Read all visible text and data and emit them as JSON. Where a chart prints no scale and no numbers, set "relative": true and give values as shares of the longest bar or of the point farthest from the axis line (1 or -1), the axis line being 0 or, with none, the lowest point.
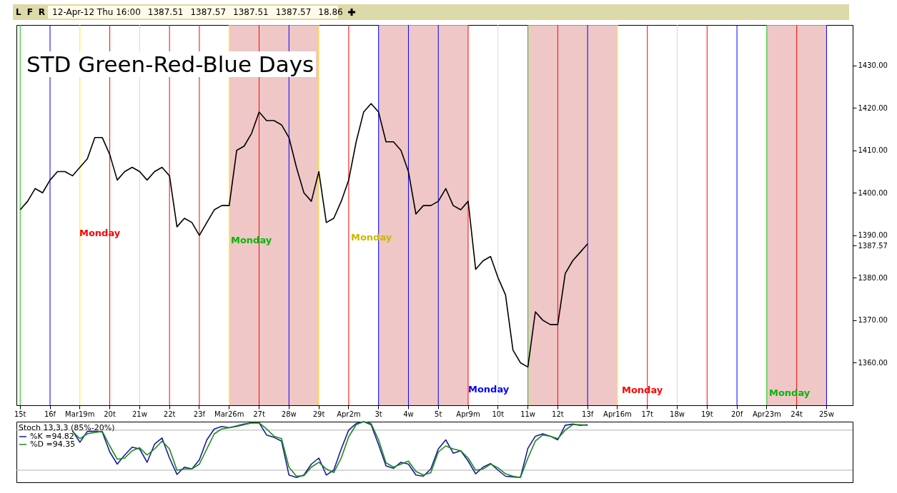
{
  "chart_data": [
    {
      "type": "line",
      "title": "STD Green-Red-Blue Days",
      "color": "#000000",
      "categories": [
        "15t",
        null,
        null,
        null,
        "16f",
        null,
        null,
        null,
        "Mar19m",
        null,
        null,
        null,
        "20t",
        null,
        null,
        null,
        "21w",
        null,
        null,
        null,
        "22t",
        null,
        null,
        null,
        "23f",
        null,
        null,
        null,
        "Mar26m",
        null,
        null,
        null,
        "27t",
        null,
        null,
        null,
        "28w",
        null,
        null,
        null,
        "29t",
        null,
        null,
        null,
        "Apr2m",
        null,
        null,
        null,
        "3t",
        null,
        null,
        null,
        "4w",
        null,
        null,
        null,
        "5t",
        null,
        null,
        null,
        "Apr9m",
        null,
        null,
        null,
        "10t",
        null,
        null,
        null,
        "11w",
        null,
        null,
        null,
        "12t",
        null,
        null,
        null,
        "13f",
        null,
        null,
        null,
        "Apr16m",
        null,
        null,
        null,
        "17t",
        null,
        null,
        null,
        "18w",
        null,
        null,
        null,
        "19t",
        null,
        null,
        null,
        "20f",
        null,
        null,
        null,
        "Apr23m",
        null,
        null,
        null,
        "24t",
        null,
        null,
        null,
        "25w",
        null,
        null,
        null
      ],
      "values": [
        1396,
        1398,
        1401,
        1400,
        1403,
        1405,
        1405,
        1404,
        1406,
        1408,
        1413,
        1413,
        1409,
        1403,
        1405,
        1406,
        1405,
        1403,
        1405,
        1406,
        1404,
        1392,
        1394,
        1393,
        1390,
        1393,
        1396,
        1397,
        1397,
        1410,
        1411,
        1414,
        1419,
        1417,
        1417,
        1416,
        1413,
        1406,
        1400,
        1398,
        1405,
        1393,
        1394,
        1398,
        1403,
        1412,
        1419,
        1421,
        1419,
        1412,
        1412,
        1410,
        1405,
        1395,
        1397,
        1397,
        1398,
        1401,
        1397,
        1396,
        1398,
        1382,
        1384,
        1385,
        1380,
        1376,
        1363,
        1360,
        1359,
        1372,
        1370,
        1369,
        1369,
        1381,
        1384,
        1386,
        1388,
        null,
        null,
        null,
        null,
        null,
        null,
        null,
        null,
        null,
        null,
        null,
        null,
        null,
        null,
        null,
        null,
        null,
        null,
        null,
        null,
        null,
        null,
        null,
        null,
        null,
        null,
        null,
        null,
        null,
        null,
        null,
        null,
        null,
        null,
        null
      ],
      "ylim": [
        1350,
        1439.5
      ],
      "yticks": [
        {
          "value": 1360,
          "label": "1360.00"
        },
        {
          "value": 1370,
          "label": "1370.00"
        },
        {
          "value": 1380,
          "label": "1380.00"
        },
        {
          "value": 1387.57,
          "label": "1387.57"
        },
        {
          "value": 1390,
          "label": "1390.00"
        },
        {
          "value": 1400,
          "label": "1400.00"
        },
        {
          "value": 1410,
          "label": "1410.00"
        },
        {
          "value": 1420,
          "label": "1420.00"
        },
        {
          "value": 1430,
          "label": "1430.00"
        }
      ],
      "bands": [
        {
          "axis": "x",
          "from": "Mar26m",
          "to": "29t",
          "color": "#eab4b4"
        },
        {
          "axis": "x",
          "from": "3t",
          "to": "Apr9m",
          "color": "#eab4b4"
        },
        {
          "axis": "x",
          "from": "11w",
          "to": "Apr16m",
          "color": "#eab4b4"
        },
        {
          "axis": "x",
          "from": "Apr23m",
          "to": "25w",
          "color": "#eab4b4"
        }
      ],
      "ref_lines": [
        {
          "axis": "x",
          "value": "15t",
          "color": "#00cc00"
        },
        {
          "axis": "x",
          "value": "16f",
          "color": "#0000ff"
        },
        {
          "axis": "x",
          "value": "Mar19m",
          "color": "#ffee00"
        },
        {
          "axis": "x",
          "value": "20t",
          "color": "#ff0000"
        },
        {
          "axis": "x",
          "value": "21w",
          "color": "#d8d8d8"
        },
        {
          "axis": "x",
          "value": "22t",
          "color": "#ff0000"
        },
        {
          "axis": "x",
          "value": "23f",
          "color": "#ff0000"
        },
        {
          "axis": "x",
          "value": "Mar26m",
          "color": "#ffee00"
        },
        {
          "axis": "x",
          "value": "27t",
          "color": "#ff0000"
        },
        {
          "axis": "x",
          "value": "28w",
          "color": "#0000ff"
        },
        {
          "axis": "x",
          "value": "29t",
          "color": "#ffee00"
        },
        {
          "axis": "x",
          "value": "Apr2m",
          "color": "#ff0000"
        },
        {
          "axis": "x",
          "value": "3t",
          "color": "#0000ff"
        },
        {
          "axis": "x",
          "value": "4w",
          "color": "#0000ff"
        },
        {
          "axis": "x",
          "value": "5t",
          "color": "#0000ff"
        },
        {
          "axis": "x",
          "value": "Apr9m",
          "color": "#ff0000"
        },
        {
          "axis": "x",
          "value": "10t",
          "color": "#d8d8d8"
        },
        {
          "axis": "x",
          "value": "11w",
          "color": "#00cc00"
        },
        {
          "axis": "x",
          "value": "12t",
          "color": "#ff0000"
        },
        {
          "axis": "x",
          "value": "13f",
          "color": "#0000ff"
        },
        {
          "axis": "x",
          "value": "Apr16m",
          "color": "#ffee00"
        },
        {
          "axis": "x",
          "value": "17t",
          "color": "#ff0000"
        },
        {
          "axis": "x",
          "value": "18w",
          "color": "#d8d8d8"
        },
        {
          "axis": "x",
          "value": "19t",
          "color": "#ff0000"
        },
        {
          "axis": "x",
          "value": "20f",
          "color": "#0000ff"
        },
        {
          "axis": "x",
          "value": "Apr23m",
          "color": "#00cc00"
        },
        {
          "axis": "x",
          "value": "24t",
          "color": "#ff0000"
        },
        {
          "axis": "x",
          "value": "25w",
          "color": "#0000ff"
        }
      ],
      "annotations": [
        "L",
        "F",
        "R",
        "12-Apr-12 Thu 16:00",
        "1387.51",
        "1387.57",
        "1387.51",
        "1387.57",
        "18.86",
        "Monday",
        "Monday",
        "Monday",
        "Monday",
        "Monday",
        "Monday"
      ]
    },
    {
      "type": "line",
      "legend_title": "Stoch 13,3,3 (85%-20%)",
      "legend": "top left",
      "relative": true,
      "categories": [
        null,
        null,
        null,
        null,
        null,
        null,
        null,
        null,
        null,
        null,
        null,
        null,
        null,
        null,
        null,
        null,
        null,
        null,
        null,
        null,
        null,
        null,
        null,
        null,
        null,
        null,
        null,
        null,
        null,
        null,
        null,
        null,
        null,
        null,
        null,
        null,
        null,
        null,
        null,
        null,
        null,
        null,
        null,
        null,
        null,
        null,
        null,
        null,
        null,
        null,
        null,
        null,
        null,
        null,
        null,
        null,
        null,
        null,
        null,
        null,
        null,
        null,
        null,
        null,
        null,
        null,
        null,
        null,
        null,
        null,
        null,
        null,
        null,
        null,
        null,
        null,
        null,
        null,
        null,
        null,
        null,
        null,
        null,
        null,
        null,
        null,
        null,
        null,
        null,
        null,
        null,
        null,
        null,
        null,
        null,
        null,
        null,
        null,
        null,
        null,
        null,
        null,
        null,
        null,
        null,
        null,
        null,
        null,
        null,
        null,
        null,
        null
      ],
      "series": [
        {
          "name": "%K =94.82",
          "color": "#1a1aa0",
          "values": [
            null,
            null,
            null,
            null,
            null,
            null,
            null,
            0.85,
            0.66,
            0.84,
            0.84,
            0.83,
            0.5,
            0.3,
            0.45,
            0.58,
            0.55,
            0.33,
            0.63,
            0.73,
            0.4,
            0.13,
            0.25,
            0.22,
            0.37,
            0.7,
            0.88,
            0.92,
            0.9,
            0.93,
            0.96,
            0.98,
            0.98,
            0.78,
            0.74,
            0.68,
            0.12,
            0.08,
            0.12,
            0.3,
            0.4,
            0.12,
            0.2,
            0.55,
            0.86,
            0.97,
            1,
            0.95,
            0.62,
            0.27,
            0.23,
            0.33,
            0.3,
            0.12,
            0.1,
            0.22,
            0.55,
            0.7,
            0.48,
            0.52,
            0.35,
            0.14,
            0.25,
            0.31,
            0.2,
            0.1,
            0.09,
            0.08,
            0.56,
            0.76,
            0.8,
            0.76,
            0.7,
            0.94,
            0.96,
            0.94,
            0.95,
            null,
            null,
            null,
            null,
            null,
            null,
            null,
            null,
            null,
            null,
            null,
            null,
            null,
            null,
            null,
            null,
            null,
            null,
            null,
            null,
            null,
            null,
            null,
            null,
            null,
            null,
            null,
            null,
            null,
            null,
            null,
            null,
            null,
            null,
            null
          ]
        },
        {
          "name": "%D =94.35",
          "color": "#1a8a1a",
          "values": [
            null,
            null,
            null,
            null,
            null,
            null,
            null,
            0.84,
            0.72,
            0.8,
            0.82,
            0.84,
            0.6,
            0.38,
            0.4,
            0.52,
            0.57,
            0.45,
            0.55,
            0.68,
            0.55,
            0.2,
            0.22,
            0.22,
            0.3,
            0.55,
            0.8,
            0.88,
            0.9,
            0.92,
            0.95,
            0.98,
            0.98,
            0.88,
            0.76,
            0.72,
            0.25,
            0.1,
            0.11,
            0.25,
            0.33,
            0.22,
            0.16,
            0.4,
            0.75,
            0.95,
            1,
            0.97,
            0.7,
            0.32,
            0.25,
            0.3,
            0.35,
            0.18,
            0.12,
            0.16,
            0.5,
            0.6,
            0.55,
            0.52,
            0.4,
            0.2,
            0.22,
            0.3,
            0.24,
            0.14,
            0.1,
            0.08,
            0.4,
            0.68,
            0.78,
            0.76,
            0.72,
            0.86,
            0.95,
            0.95,
            0.94,
            null,
            null,
            null,
            null,
            null,
            null,
            null,
            null,
            null,
            null,
            null,
            null,
            null,
            null,
            null,
            null,
            null,
            null,
            null,
            null,
            null,
            null,
            null,
            null,
            null,
            null,
            null,
            null,
            null,
            null,
            null,
            null,
            null,
            null,
            null
          ]
        }
      ],
      "ref_lines": [
        {
          "axis": "y",
          "value": 0.86,
          "color": "#b0b0b0"
        },
        {
          "axis": "y",
          "value": 0.2,
          "color": "#b0b0b0"
        }
      ]
    }
  ]
}
